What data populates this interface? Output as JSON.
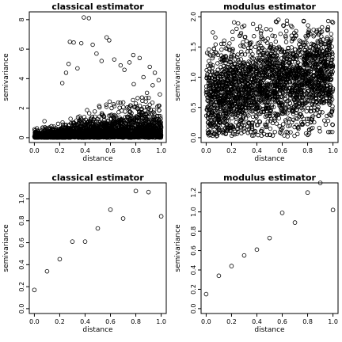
{
  "chart_data": [
    {
      "type": "scatter",
      "title": "classical estimator",
      "xlabel": "distance",
      "ylabel": "semivariance",
      "xlim": [
        0,
        1
      ],
      "ylim": [
        0,
        8.2
      ],
      "xticks": [
        "0.0",
        "0.2",
        "0.4",
        "0.6",
        "0.8",
        "1.0"
      ],
      "yticks": [
        "0",
        "2",
        "4",
        "6",
        "8"
      ],
      "point_style": "open-circle",
      "n_points": 2500,
      "points": [
        [
          0.39,
          8.15
        ],
        [
          0.43,
          8.1
        ],
        [
          0.28,
          6.5
        ],
        [
          0.31,
          6.45
        ],
        [
          0.37,
          6.4
        ],
        [
          0.57,
          6.8
        ],
        [
          0.59,
          6.6
        ],
        [
          0.46,
          6.3
        ],
        [
          0.78,
          5.6
        ],
        [
          0.83,
          5.4
        ],
        [
          0.75,
          5.1
        ],
        [
          0.49,
          5.7
        ],
        [
          0.53,
          5.2
        ],
        [
          0.91,
          4.8
        ],
        [
          0.95,
          4.4
        ],
        [
          0.68,
          4.9
        ],
        [
          0.34,
          4.7
        ],
        [
          0.27,
          5.0
        ],
        [
          0.86,
          4.1
        ],
        [
          0.25,
          4.4
        ],
        [
          0.63,
          5.3
        ],
        [
          0.71,
          4.6
        ],
        [
          0.22,
          3.7
        ],
        [
          0.98,
          3.9
        ]
      ],
      "series_name": ""
    },
    {
      "type": "scatter",
      "title": "modulus estimator",
      "xlabel": "distance",
      "ylabel": "semivariance",
      "xlim": [
        0,
        1
      ],
      "ylim": [
        0,
        2.0
      ],
      "xticks": [
        "0.0",
        "0.2",
        "0.4",
        "0.6",
        "0.8",
        "1.0"
      ],
      "yticks": [
        "0.0",
        "0.5",
        "1.0",
        "1.5",
        "2.0"
      ],
      "point_style": "open-circle",
      "n_points": 2500,
      "points": [
        [
          0.57,
          1.95
        ],
        [
          0.55,
          1.92
        ],
        [
          0.37,
          1.88
        ],
        [
          0.24,
          1.8
        ],
        [
          0.67,
          1.85
        ],
        [
          0.81,
          1.75
        ],
        [
          0.12,
          1.55
        ],
        [
          0.06,
          1.38
        ],
        [
          0.95,
          1.45
        ],
        [
          0.9,
          1.1
        ],
        [
          0.98,
          0.7
        ],
        [
          0.02,
          0.4
        ],
        [
          0.5,
          0.05
        ],
        [
          0.33,
          0.08
        ],
        [
          0.72,
          0.06
        ],
        [
          0.2,
          0.12
        ]
      ]
    },
    {
      "type": "scatter",
      "title": "classical estimator",
      "xlabel": "distance",
      "ylabel": "semivariance",
      "xlim": [
        0,
        1
      ],
      "ylim": [
        0,
        1.1
      ],
      "xticks": [
        "0.0",
        "0.2",
        "0.4",
        "0.6",
        "0.8",
        "1.0"
      ],
      "yticks": [
        "0.0",
        "0.2",
        "0.4",
        "0.6",
        "0.8",
        "1.0"
      ],
      "point_style": "open-circle",
      "x": [
        0.0,
        0.1,
        0.2,
        0.3,
        0.4,
        0.5,
        0.6,
        0.7,
        0.8,
        0.9,
        1.0
      ],
      "y": [
        0.17,
        0.34,
        0.45,
        0.61,
        0.61,
        0.73,
        0.9,
        0.82,
        1.07,
        1.06,
        0.84
      ]
    },
    {
      "type": "scatter",
      "title": "modulus estimator",
      "xlabel": "distance",
      "ylabel": "semivariance",
      "xlim": [
        0,
        1
      ],
      "ylim": [
        0,
        1.25
      ],
      "xticks": [
        "0.0",
        "0.2",
        "0.4",
        "0.6",
        "0.8",
        "1.0"
      ],
      "yticks": [
        "0.0",
        "0.2",
        "0.4",
        "0.6",
        "0.8",
        "1.0",
        "1.2"
      ],
      "point_style": "open-circle",
      "x": [
        0.0,
        0.1,
        0.2,
        0.3,
        0.4,
        0.5,
        0.6,
        0.7,
        0.8,
        0.9,
        1.0
      ],
      "y": [
        0.15,
        0.34,
        0.44,
        0.55,
        0.61,
        0.73,
        0.99,
        0.89,
        1.2,
        1.3,
        1.02
      ]
    }
  ]
}
